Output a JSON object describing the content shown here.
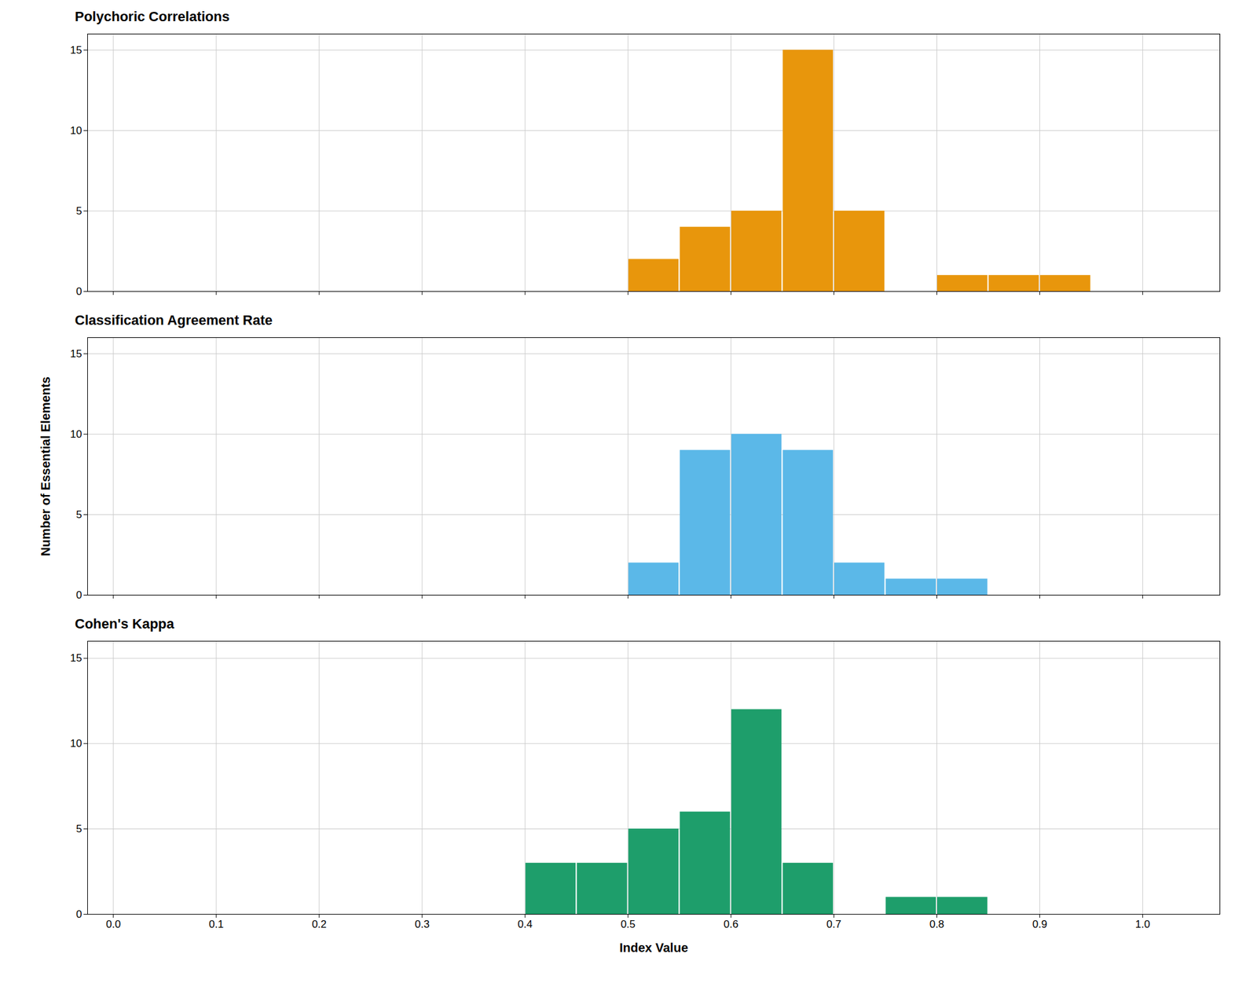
{
  "chart_data": [
    {
      "type": "histogram",
      "title": "Polychoric Correlations",
      "bins": [
        0.5,
        0.55,
        0.6,
        0.65,
        0.7,
        0.75,
        0.8,
        0.85,
        0.9,
        0.95
      ],
      "values": [
        2,
        4,
        5,
        15,
        5,
        0,
        1,
        1,
        1
      ],
      "color": "#E8960C",
      "xlim": [
        -0.025,
        1.075
      ],
      "xticks": [
        {
          "value": 0,
          "label": "0.0"
        },
        0.1,
        0.2,
        0.3,
        0.4,
        0.5,
        0.6,
        0.7,
        0.8,
        0.9,
        {
          "value": 1,
          "label": "1.0"
        }
      ],
      "ylim": [
        0,
        16
      ],
      "yticks": [
        0,
        5,
        10,
        15
      ],
      "grid": true,
      "tick_labels": "y"
    },
    {
      "type": "histogram",
      "title": "Classification Agreement Rate",
      "y_label": "Number of Essential Elements",
      "bins": [
        0.5,
        0.55,
        0.6,
        0.65,
        0.7,
        0.75,
        0.8,
        0.85
      ],
      "values": [
        2,
        9,
        10,
        9,
        2,
        1,
        1
      ],
      "color": "#5BB8E8",
      "xlim": [
        -0.025,
        1.075
      ],
      "xticks": [
        {
          "value": 0,
          "label": "0.0"
        },
        0.1,
        0.2,
        0.3,
        0.4,
        0.5,
        0.6,
        0.7,
        0.8,
        0.9,
        {
          "value": 1,
          "label": "1.0"
        }
      ],
      "ylim": [
        0,
        16
      ],
      "yticks": [
        0,
        5,
        10,
        15
      ],
      "grid": true,
      "tick_labels": "y"
    },
    {
      "type": "histogram",
      "title": "Cohen's Kappa",
      "x_label": "Index Value",
      "bins": [
        0.4,
        0.45,
        0.5,
        0.55,
        0.6,
        0.65,
        0.7,
        0.75,
        0.8,
        0.85
      ],
      "values": [
        3,
        3,
        5,
        6,
        12,
        3,
        0,
        1,
        1
      ],
      "color": "#1E9E6B",
      "xlim": [
        -0.025,
        1.075
      ],
      "xticks": [
        {
          "value": 0,
          "label": "0.0"
        },
        0.1,
        0.2,
        0.3,
        0.4,
        0.5,
        0.6,
        0.7,
        0.8,
        0.9,
        {
          "value": 1,
          "label": "1.0"
        }
      ],
      "ylim": [
        0,
        16
      ],
      "yticks": [
        0,
        5,
        10,
        15
      ],
      "grid": true
    }
  ]
}
